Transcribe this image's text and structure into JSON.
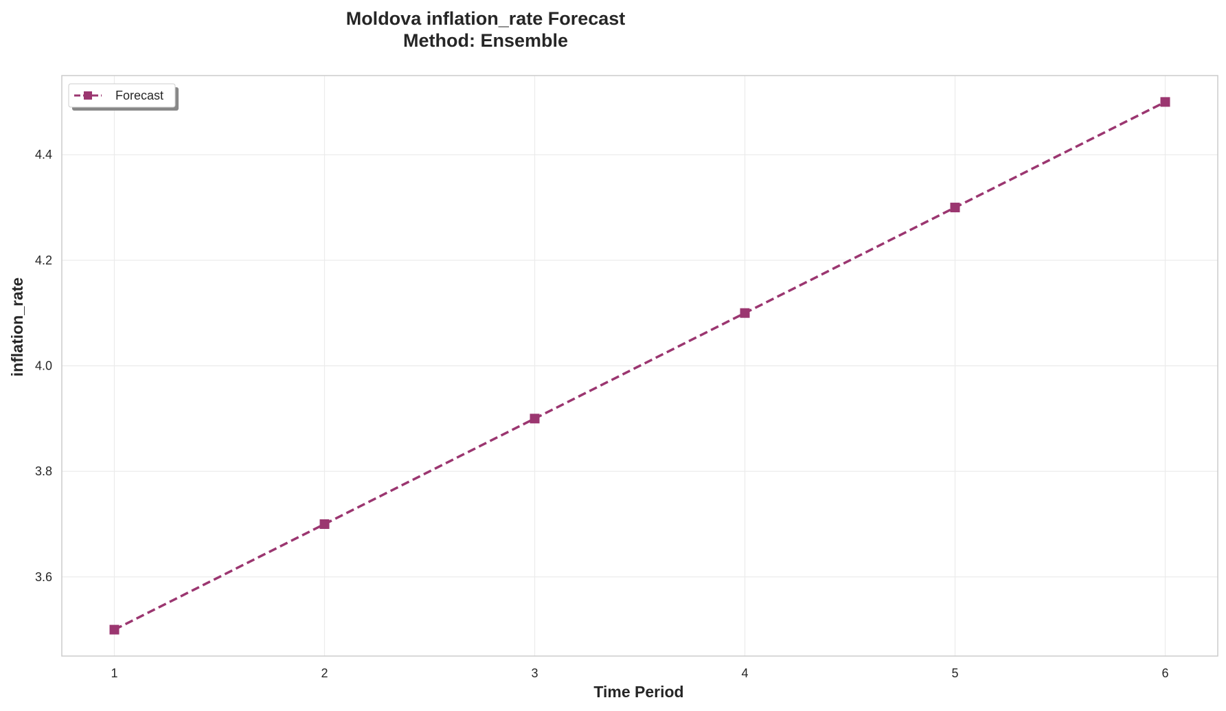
{
  "chart_data": {
    "type": "line",
    "title": "Moldova inflation_rate Forecast",
    "subtitle": "Method: Ensemble",
    "xlabel": "Time Period",
    "ylabel": "inflation_rate",
    "x": [
      1,
      2,
      3,
      4,
      5,
      6
    ],
    "x_ticks": [
      "1",
      "2",
      "3",
      "4",
      "5",
      "6"
    ],
    "xlim": [
      0.75,
      6.25
    ],
    "ylim": [
      3.45,
      4.55
    ],
    "y_ticks": [
      3.6,
      3.8,
      4.0,
      4.2,
      4.4
    ],
    "y_tick_labels": [
      "3.6",
      "3.8",
      "4.0",
      "4.2",
      "4.4"
    ],
    "grid": true,
    "legend_position": "top-left",
    "series": [
      {
        "name": "Forecast",
        "values": [
          3.5,
          3.7,
          3.9,
          4.1,
          4.3,
          4.5
        ],
        "color": "#9b3670",
        "line_style": "dashed",
        "marker": "square"
      }
    ]
  }
}
